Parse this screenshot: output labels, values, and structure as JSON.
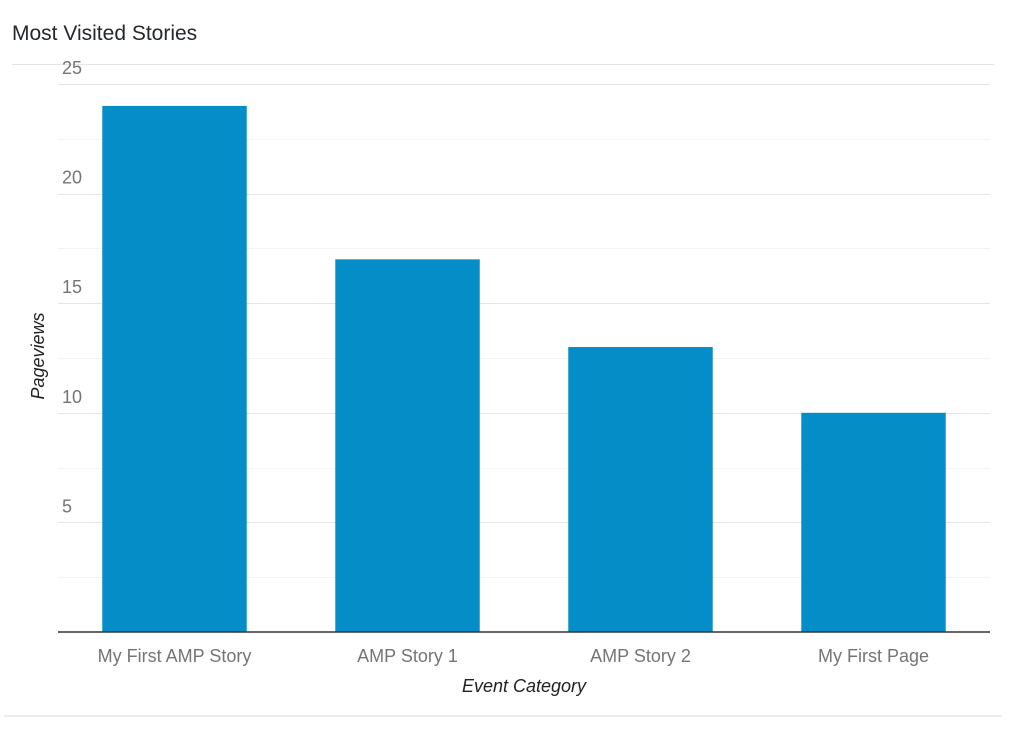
{
  "widget": {
    "title": "Most Visited Stories"
  },
  "colors": {
    "bar": "#058dc7",
    "grid_major": "#e5e5e5",
    "grid_minor": "#f3f3f3",
    "baseline": "#333333",
    "tick_text": "#757575",
    "axis_title_text": "#222222"
  },
  "chart_data": {
    "type": "bar",
    "categories": [
      "My First AMP Story",
      "AMP Story 1",
      "AMP Story 2",
      "My First Page"
    ],
    "values": [
      24,
      17,
      13,
      10
    ],
    "xlabel": "Event Category",
    "ylabel": "Pageviews",
    "ylim": [
      0,
      25
    ],
    "yticks": [
      5,
      10,
      15,
      20,
      25
    ],
    "grid": true,
    "legend": "none"
  }
}
